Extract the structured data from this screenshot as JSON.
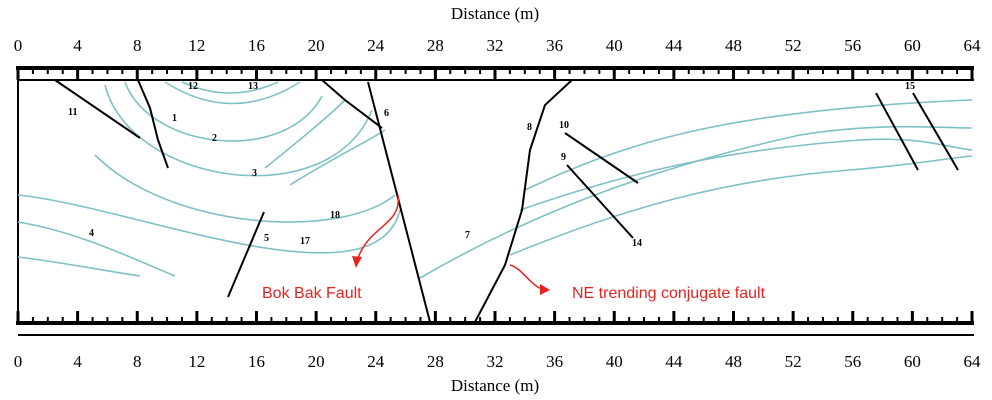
{
  "top_axis": {
    "title": "Distance (m)",
    "ticks": [
      0,
      4,
      8,
      12,
      16,
      20,
      24,
      28,
      32,
      36,
      40,
      44,
      48,
      52,
      56,
      60,
      64
    ]
  },
  "bottom_axis": {
    "title": "Distance (m)",
    "ticks": [
      0,
      4,
      8,
      12,
      16,
      20,
      24,
      28,
      32,
      36,
      40,
      44,
      48,
      52,
      56,
      60,
      64
    ]
  },
  "labels": [
    "1",
    "2",
    "3",
    "4",
    "5",
    "6",
    "7",
    "8",
    "9",
    "10",
    "11",
    "12",
    "13",
    "14",
    "15",
    "17",
    "18"
  ],
  "annotations": [
    "Bok Bak Fault",
    "NE trending conjugate fault"
  ]
}
